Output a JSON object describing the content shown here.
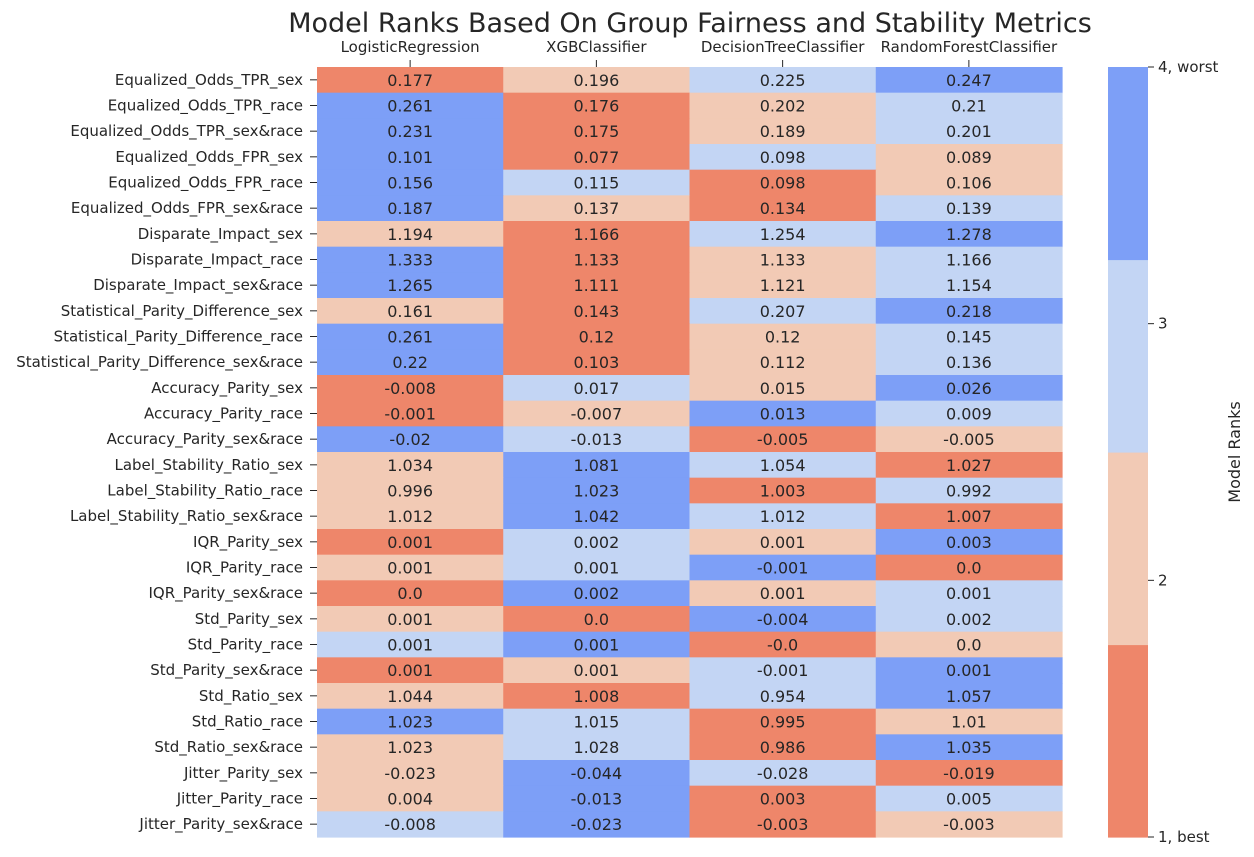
{
  "chart_data": {
    "type": "heatmap",
    "title": "Model Ranks Based On Group Fairness and Stability Metrics",
    "columns": [
      "LogisticRegression",
      "XGBClassifier",
      "DecisionTreeClassifier",
      "RandomForestClassifier"
    ],
    "rows": [
      "Equalized_Odds_TPR_sex",
      "Equalized_Odds_TPR_race",
      "Equalized_Odds_TPR_sex&race",
      "Equalized_Odds_FPR_sex",
      "Equalized_Odds_FPR_race",
      "Equalized_Odds_FPR_sex&race",
      "Disparate_Impact_sex",
      "Disparate_Impact_race",
      "Disparate_Impact_sex&race",
      "Statistical_Parity_Difference_sex",
      "Statistical_Parity_Difference_race",
      "Statistical_Parity_Difference_sex&race",
      "Accuracy_Parity_sex",
      "Accuracy_Parity_race",
      "Accuracy_Parity_sex&race",
      "Label_Stability_Ratio_sex",
      "Label_Stability_Ratio_race",
      "Label_Stability_Ratio_sex&race",
      "IQR_Parity_sex",
      "IQR_Parity_race",
      "IQR_Parity_sex&race",
      "Std_Parity_sex",
      "Std_Parity_race",
      "Std_Parity_sex&race",
      "Std_Ratio_sex",
      "Std_Ratio_race",
      "Std_Ratio_sex&race",
      "Jitter_Parity_sex",
      "Jitter_Parity_race",
      "Jitter_Parity_sex&race"
    ],
    "values": [
      [
        "0.177",
        "0.196",
        "0.225",
        "0.247"
      ],
      [
        "0.261",
        "0.176",
        "0.202",
        "0.21"
      ],
      [
        "0.231",
        "0.175",
        "0.189",
        "0.201"
      ],
      [
        "0.101",
        "0.077",
        "0.098",
        "0.089"
      ],
      [
        "0.156",
        "0.115",
        "0.098",
        "0.106"
      ],
      [
        "0.187",
        "0.137",
        "0.134",
        "0.139"
      ],
      [
        "1.194",
        "1.166",
        "1.254",
        "1.278"
      ],
      [
        "1.333",
        "1.133",
        "1.133",
        "1.166"
      ],
      [
        "1.265",
        "1.111",
        "1.121",
        "1.154"
      ],
      [
        "0.161",
        "0.143",
        "0.207",
        "0.218"
      ],
      [
        "0.261",
        "0.12",
        "0.12",
        "0.145"
      ],
      [
        "0.22",
        "0.103",
        "0.112",
        "0.136"
      ],
      [
        "-0.008",
        "0.017",
        "0.015",
        "0.026"
      ],
      [
        "-0.001",
        "-0.007",
        "0.013",
        "0.009"
      ],
      [
        "-0.02",
        "-0.013",
        "-0.005",
        "-0.005"
      ],
      [
        "1.034",
        "1.081",
        "1.054",
        "1.027"
      ],
      [
        "0.996",
        "1.023",
        "1.003",
        "0.992"
      ],
      [
        "1.012",
        "1.042",
        "1.012",
        "1.007"
      ],
      [
        "0.001",
        "0.002",
        "0.001",
        "0.003"
      ],
      [
        "0.001",
        "0.001",
        "-0.001",
        "0.0"
      ],
      [
        "0.0",
        "0.002",
        "0.001",
        "0.001"
      ],
      [
        "0.001",
        "0.0",
        "-0.004",
        "0.002"
      ],
      [
        "0.001",
        "0.001",
        "-0.0",
        "0.0"
      ],
      [
        "0.001",
        "0.001",
        "-0.001",
        "0.001"
      ],
      [
        "1.044",
        "1.008",
        "0.954",
        "1.057"
      ],
      [
        "1.023",
        "1.015",
        "0.995",
        "1.01"
      ],
      [
        "1.023",
        "1.028",
        "0.986",
        "1.035"
      ],
      [
        "-0.023",
        "-0.044",
        "-0.028",
        "-0.019"
      ],
      [
        "0.004",
        "-0.013",
        "0.003",
        "0.005"
      ],
      [
        "-0.008",
        "-0.023",
        "-0.003",
        "-0.003"
      ]
    ],
    "ranks": [
      [
        1,
        2,
        3,
        4
      ],
      [
        4,
        1,
        2,
        3
      ],
      [
        4,
        1,
        2,
        3
      ],
      [
        4,
        1,
        3,
        2
      ],
      [
        4,
        3,
        1,
        2
      ],
      [
        4,
        2,
        1,
        3
      ],
      [
        2,
        1,
        3,
        4
      ],
      [
        4,
        1,
        2,
        3
      ],
      [
        4,
        1,
        2,
        3
      ],
      [
        2,
        1,
        3,
        4
      ],
      [
        4,
        1,
        2,
        3
      ],
      [
        4,
        1,
        2,
        3
      ],
      [
        1,
        3,
        2,
        4
      ],
      [
        1,
        2,
        4,
        3
      ],
      [
        4,
        3,
        1,
        2
      ],
      [
        2,
        4,
        3,
        1
      ],
      [
        2,
        4,
        1,
        3
      ],
      [
        2,
        4,
        3,
        1
      ],
      [
        1,
        3,
        2,
        4
      ],
      [
        2,
        3,
        4,
        1
      ],
      [
        1,
        4,
        2,
        3
      ],
      [
        2,
        1,
        4,
        3
      ],
      [
        3,
        4,
        1,
        2
      ],
      [
        1,
        2,
        3,
        4
      ],
      [
        2,
        1,
        3,
        4
      ],
      [
        4,
        3,
        1,
        2
      ],
      [
        2,
        3,
        1,
        4
      ],
      [
        2,
        4,
        3,
        1
      ],
      [
        2,
        4,
        1,
        3
      ],
      [
        3,
        4,
        1,
        2
      ]
    ],
    "rank_colors": {
      "1": "#ee866a",
      "2": "#f2cab5",
      "3": "#c3d5f4",
      "4": "#7d9ff7"
    },
    "colorbar": {
      "label": "Model Ranks",
      "ticks": [
        "1, best",
        "2",
        "3",
        "4, worst"
      ]
    },
    "legend": "right"
  }
}
